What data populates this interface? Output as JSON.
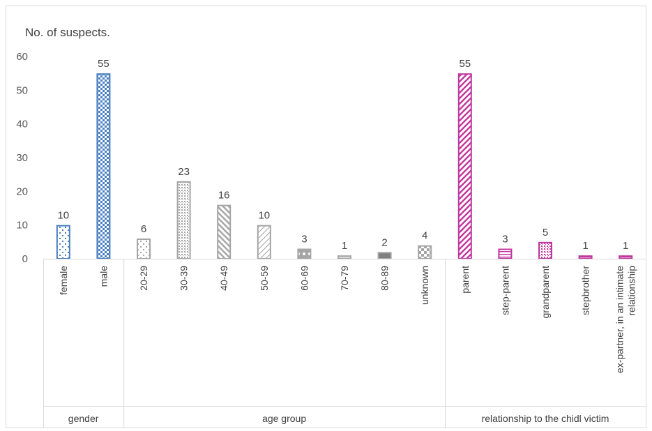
{
  "chart_data": {
    "type": "bar",
    "y_title": "No. of suspects.",
    "ylim": [
      0,
      60
    ],
    "y_ticks": [
      "0",
      "10",
      "20",
      "30",
      "40",
      "50",
      "60"
    ],
    "grid": false,
    "groups": [
      {
        "label": "gender",
        "color": "#4a7fc1",
        "categories": [
          {
            "label": "female",
            "value": 10,
            "pattern": "sparse-dots"
          },
          {
            "label": "male",
            "value": 55,
            "pattern": "checker"
          }
        ]
      },
      {
        "label": "age group",
        "color": "#a5a5a5",
        "categories": [
          {
            "label": "20-29",
            "value": 6,
            "pattern": "sparse-dots"
          },
          {
            "label": "30-39",
            "value": 23,
            "pattern": "dense-dots"
          },
          {
            "label": "40-49",
            "value": 16,
            "pattern": "wide-diagonal"
          },
          {
            "label": "50-59",
            "value": 10,
            "pattern": "light-diagonal"
          },
          {
            "label": "60-69",
            "value": 3,
            "pattern": "sphere"
          },
          {
            "label": "70-79",
            "value": 1,
            "pattern": "solid-light"
          },
          {
            "label": "80-89",
            "value": 2,
            "pattern": "solid-dark"
          },
          {
            "label": "unknown",
            "value": 4,
            "pattern": "large-checker"
          }
        ]
      },
      {
        "label": "relationship to the chidl victim",
        "color": "#c0379f",
        "categories": [
          {
            "label": "parent",
            "value": 55,
            "pattern": "wide-diagonal-up"
          },
          {
            "label": "step-parent",
            "value": 3,
            "pattern": "horizontal"
          },
          {
            "label": "grandparent",
            "value": 5,
            "pattern": "dense-dots"
          },
          {
            "label": "stepbrother",
            "value": 1,
            "pattern": "horizontal"
          },
          {
            "label": [
              "ex-partner, in an intimate",
              "relationship"
            ],
            "value": 1,
            "pattern": "horizontal"
          }
        ]
      }
    ]
  }
}
